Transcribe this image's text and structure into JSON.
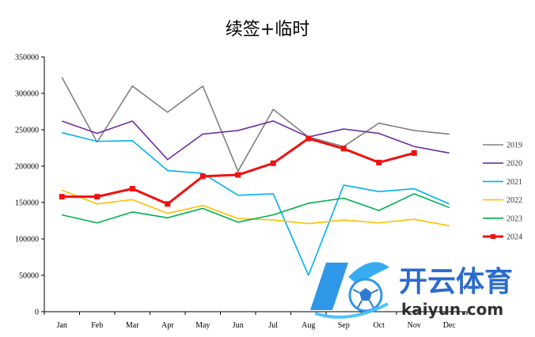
{
  "chart_data": {
    "type": "line",
    "title": "续签+临时",
    "xlabel": "",
    "ylabel": "",
    "categories": [
      "Jan",
      "Feb",
      "Mar",
      "Apr",
      "May",
      "Jun",
      "Jul",
      "Aug",
      "Sep",
      "Oct",
      "Nov",
      "Dec"
    ],
    "ylim": [
      0,
      350000
    ],
    "yticks": [
      0,
      50000,
      100000,
      150000,
      200000,
      250000,
      300000,
      350000
    ],
    "ytick_labels": [
      "0",
      "50000",
      "100000",
      "150000",
      "200000",
      "250000",
      "300000",
      "350000"
    ],
    "grid": false,
    "legend_position": "right",
    "series": [
      {
        "name": "2019",
        "color": "#808080",
        "values": [
          322000,
          233000,
          310000,
          274000,
          310000,
          193000,
          278000,
          240000,
          227000,
          259000,
          249000,
          244000
        ]
      },
      {
        "name": "2020",
        "color": "#7030a0",
        "values": [
          262000,
          245000,
          262000,
          209000,
          244000,
          249000,
          262000,
          240000,
          251000,
          245000,
          227000,
          218000
        ]
      },
      {
        "name": "2021",
        "color": "#00b0f0",
        "values": [
          246000,
          234000,
          235000,
          194000,
          190000,
          160000,
          162000,
          50000,
          174000,
          165000,
          169000,
          148000
        ]
      },
      {
        "name": "2022",
        "color": "#ffc000",
        "values": [
          167000,
          148000,
          154000,
          135000,
          146000,
          128000,
          126000,
          121000,
          126000,
          122000,
          127000,
          118000
        ]
      },
      {
        "name": "2023",
        "color": "#00b050",
        "values": [
          133000,
          122000,
          137000,
          129000,
          142000,
          123000,
          133000,
          149000,
          156000,
          139000,
          162000,
          143000
        ]
      },
      {
        "name": "2024",
        "color": "#ee1111",
        "values": [
          158000,
          158000,
          169000,
          148000,
          186000,
          188000,
          204000,
          238000,
          224000,
          205000,
          218000,
          null
        ],
        "marker": "square"
      }
    ]
  },
  "watermark": {
    "brand": "开云体育",
    "domain": "kaiyun.com",
    "logo_icon": "k-ball-logo-icon"
  }
}
